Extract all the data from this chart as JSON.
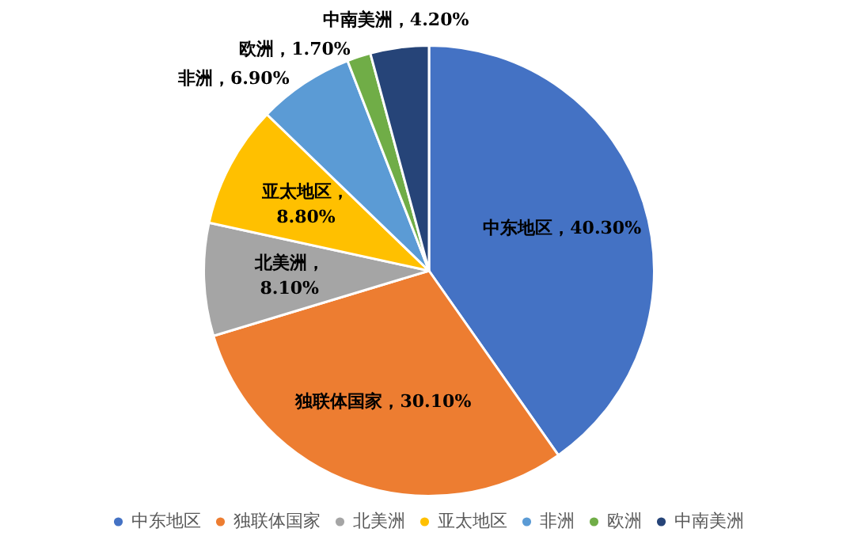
{
  "chart_data": {
    "type": "pie",
    "categories": [
      "中东地区",
      "独联体国家",
      "北美洲",
      "亚太地区",
      "非洲",
      "欧洲",
      "中南美洲"
    ],
    "values": [
      40.3,
      30.1,
      8.1,
      8.8,
      6.9,
      1.7,
      4.2
    ],
    "colors": [
      "#4472c4",
      "#ed7d31",
      "#a5a5a5",
      "#ffc000",
      "#5b9bd5",
      "#70ad47",
      "#264478"
    ],
    "value_labels": [
      "中东地区，40.30%",
      "独联体国家，30.10%",
      "北美洲，8.10%",
      "亚太地区，8.80%",
      "非洲，6.90%",
      "欧洲，1.70%",
      "中南美洲，4.20%"
    ],
    "legend": "bottom"
  }
}
